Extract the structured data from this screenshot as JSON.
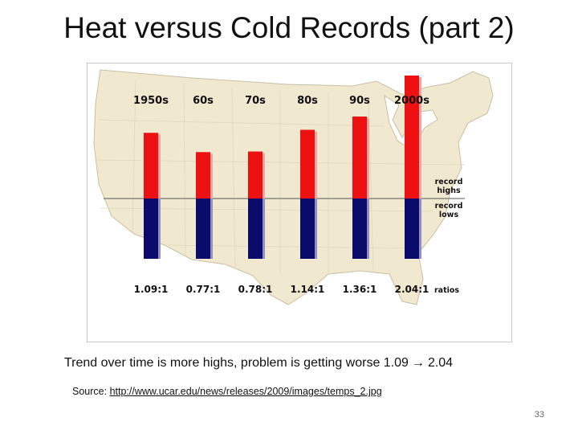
{
  "slide": {
    "title": "Heat versus Cold Records (part 2)",
    "caption": "Trend over time is more highs, problem is getting worse   1.09",
    "caption_arrow": "→",
    "caption_end": "2.04",
    "source_prefix": "Source: ",
    "source_url": "http://www.ucar.edu/news/releases/2009/images/temps_2.jpg",
    "page_number": "33"
  },
  "chart_data": {
    "type": "bar",
    "categories": [
      "1950s",
      "60s",
      "70s",
      "80s",
      "90s",
      "2000s"
    ],
    "series": [
      {
        "name": "record highs",
        "values": [
          1.09,
          0.77,
          0.78,
          1.14,
          1.36,
          2.04
        ]
      },
      {
        "name": "record lows",
        "values": [
          1,
          1,
          1,
          1,
          1,
          1
        ]
      }
    ],
    "ratios": [
      "1.09:1",
      "0.77:1",
      "0.78:1",
      "1.14:1",
      "1.36:1",
      "2.04:1"
    ],
    "ratios_label": "ratios",
    "labels": {
      "highs_line1": "record",
      "highs_line2": "highs",
      "lows_line1": "record",
      "lows_line2": "lows"
    },
    "colors": {
      "highs": "#ee1111",
      "lows": "#0b0b6b",
      "map": "#f1e8d0"
    }
  }
}
